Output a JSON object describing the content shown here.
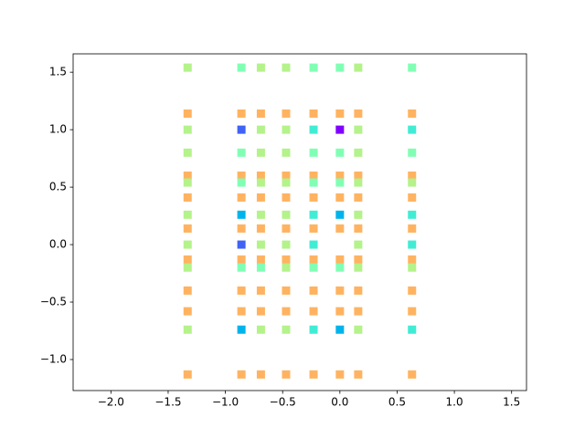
{
  "chart_data": {
    "type": "scatter",
    "xlim": [
      -2.33,
      1.63
    ],
    "ylim": [
      -1.27,
      1.66
    ],
    "xticks": [
      {
        "value": -2,
        "label": "−2.0"
      },
      {
        "value": -1.5,
        "label": "−1.5"
      },
      {
        "value": -1,
        "label": "−1.0"
      },
      {
        "value": -0.5,
        "label": "−0.5"
      },
      {
        "value": 0,
        "label": "0.0"
      },
      {
        "value": 0.5,
        "label": "0.5"
      },
      {
        "value": 1,
        "label": "1.0"
      },
      {
        "value": 1.5,
        "label": "1.5"
      }
    ],
    "yticks": [
      {
        "value": -1,
        "label": "−1.0"
      },
      {
        "value": -0.5,
        "label": "−0.5"
      },
      {
        "value": 0,
        "label": "0.0"
      },
      {
        "value": 0.5,
        "label": "0.5"
      },
      {
        "value": 1,
        "label": "1.0"
      },
      {
        "value": 1.5,
        "label": "1.5"
      }
    ],
    "series": [
      {
        "color": "#ffb360",
        "x": [
          -1.33,
          -0.86,
          -0.69,
          -0.47,
          -0.23,
          0,
          0.16,
          0.63,
          -1.33,
          -0.86,
          -0.69,
          -0.47,
          -0.23,
          0,
          0.16,
          0.63,
          -1.33,
          -0.86,
          -0.69,
          -0.47,
          -0.23,
          0,
          0.16,
          0.63,
          -1.33,
          -0.86,
          -0.69,
          -0.47,
          -0.23,
          0,
          0.16,
          0.63,
          -1.33,
          -0.86,
          -0.69,
          -0.47,
          -0.23,
          0,
          0.16,
          0.63,
          -1.33,
          -0.86,
          -0.69,
          -0.47,
          -0.23,
          0,
          0.16,
          0.63,
          -1.33,
          -0.86,
          -0.69,
          -0.47,
          -0.23,
          0,
          0.16,
          0.63,
          -1.33,
          -0.86,
          -0.69,
          -0.47,
          -0.23,
          0,
          0.16,
          0.63
        ],
        "values": [
          1.14,
          1.14,
          1.14,
          1.14,
          1.14,
          1.14,
          1.14,
          1.14,
          0.6,
          0.6,
          0.6,
          0.6,
          0.6,
          0.6,
          0.6,
          0.6,
          0.41,
          0.41,
          0.41,
          0.41,
          0.41,
          0.41,
          0.41,
          0.41,
          0.14,
          0.14,
          0.14,
          0.14,
          0.14,
          0.14,
          0.14,
          0.14,
          -0.13,
          -0.13,
          -0.13,
          -0.13,
          -0.13,
          -0.13,
          -0.13,
          -0.13,
          -0.4,
          -0.4,
          -0.4,
          -0.4,
          -0.4,
          -0.4,
          -0.4,
          -0.4,
          -0.58,
          -0.58,
          -0.58,
          -0.58,
          -0.58,
          -0.58,
          -0.58,
          -0.58,
          -1.13,
          -1.13,
          -1.13,
          -1.13,
          -1.13,
          -1.13,
          -1.13,
          -1.13
        ]
      },
      {
        "color": "#b4f28a",
        "x": [
          -1.33,
          -0.69,
          -0.47,
          0.16,
          -1.33,
          -0.69,
          -0.47,
          0.16,
          -1.33,
          -0.69,
          -0.47,
          0.16,
          -1.33,
          -0.69,
          -0.47,
          0.16,
          0.63,
          -1.33,
          -0.69,
          -0.47,
          0.16,
          -1.33,
          -0.69,
          -0.47,
          0.16,
          -1.33,
          -0.47,
          0.16,
          0.63,
          -1.33,
          -0.69,
          -0.47,
          0.16
        ],
        "values": [
          1.54,
          1.54,
          1.54,
          1.54,
          1.0,
          1.0,
          1.0,
          1.0,
          0.8,
          0.8,
          0.8,
          0.8,
          0.54,
          0.54,
          0.54,
          0.54,
          0.54,
          0.26,
          0.26,
          0.26,
          0.26,
          0,
          0,
          0,
          0,
          -0.2,
          -0.2,
          -0.2,
          -0.2,
          -0.74,
          -0.74,
          -0.74,
          -0.74
        ]
      },
      {
        "color": "#80ffb4",
        "x": [
          -0.86,
          -0.23,
          0,
          0.63,
          -0.86,
          -0.23,
          0,
          0.63,
          -0.86,
          -0.23,
          0,
          -0.86,
          -0.69,
          -0.23,
          0
        ],
        "values": [
          1.54,
          1.54,
          1.54,
          1.54,
          0.8,
          0.8,
          0.8,
          0.8,
          0.54,
          0.54,
          0.54,
          -0.2,
          -0.2,
          -0.2,
          -0.2
        ]
      },
      {
        "color": "#40ecd4",
        "x": [
          -0.23,
          0.63,
          -0.23,
          0.63,
          -0.23,
          0.63,
          -0.23,
          0.63
        ],
        "values": [
          1.0,
          1.0,
          0.26,
          0.26,
          0,
          0,
          -0.74,
          -0.74
        ]
      },
      {
        "color": "#00b4eb",
        "x": [
          -0.86,
          0,
          -0.86,
          0
        ],
        "values": [
          0.26,
          0.26,
          -0.74,
          -0.74
        ]
      },
      {
        "color": "#4062f5",
        "x": [
          -0.86,
          -0.86
        ],
        "values": [
          1.0,
          0
        ]
      },
      {
        "color": "#8000ff",
        "x": [
          0
        ],
        "values": [
          1.0
        ]
      }
    ]
  }
}
